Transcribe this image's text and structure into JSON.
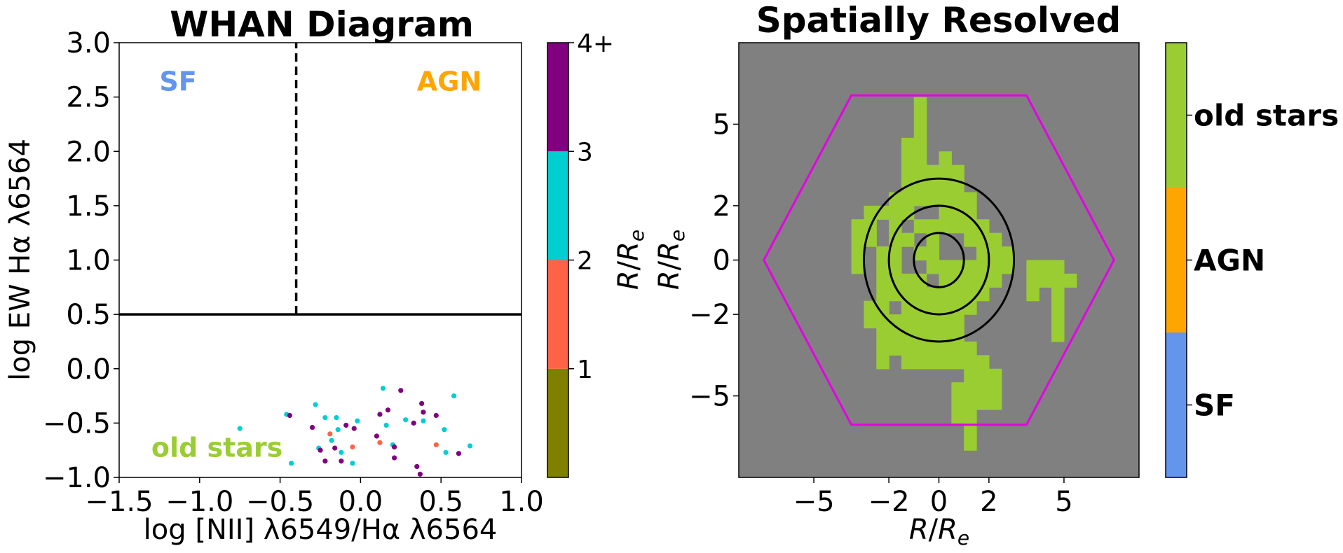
{
  "chart_data": [
    {
      "type": "scatter",
      "title": "WHAN Diagram",
      "xlabel": "log [NII] λ6549/Hα λ6564",
      "ylabel": "log EW Hα λ6564",
      "xlim": [
        -1.5,
        1.0
      ],
      "ylim": [
        -1.0,
        3.0
      ],
      "xticks": [
        "−1.5",
        "−1.0",
        "−0.5",
        "0.0",
        "0.5",
        "1.0"
      ],
      "yticks": [
        "−1.0",
        "−0.5",
        "0.0",
        "0.5",
        "1.0",
        "1.5",
        "2.0",
        "2.5",
        "3.0"
      ],
      "xtick_values": [
        -1.5,
        -1.0,
        -0.5,
        0.0,
        0.5,
        1.0
      ],
      "ytick_values": [
        -1.0,
        -0.5,
        0.0,
        0.5,
        1.0,
        1.5,
        2.0,
        2.5,
        3.0
      ],
      "regions": [
        {
          "label": "SF",
          "color": "#6495ED",
          "x": -1.25,
          "y": 2.65
        },
        {
          "label": "AGN",
          "color": "#FFA500",
          "x": 0.35,
          "y": 2.65
        },
        {
          "label": "old stars",
          "color": "#9ACD32",
          "x": -1.3,
          "y": -0.72
        }
      ],
      "lines": [
        {
          "kind": "vertical",
          "x": -0.4,
          "y_from": 0.5,
          "y_to": 3.0,
          "style": "dashed"
        },
        {
          "kind": "horizontal",
          "y": 0.5,
          "style": "solid"
        }
      ],
      "colorbar": {
        "label": "R/R_e",
        "tick_labels": [
          "1",
          "2",
          "3",
          "4+"
        ],
        "bins": [
          {
            "from": 0,
            "to": 1,
            "color": "#808000"
          },
          {
            "from": 1,
            "to": 2,
            "color": "#FF6347"
          },
          {
            "from": 2,
            "to": 3,
            "color": "#00CED1"
          },
          {
            "from": 3,
            "to": 4,
            "color": "#800080"
          }
        ],
        "range": [
          0,
          4
        ]
      },
      "points": [
        {
          "x": -0.75,
          "y": -0.55,
          "c": "#00CED1"
        },
        {
          "x": -0.46,
          "y": -0.42,
          "c": "#00CED1"
        },
        {
          "x": -0.44,
          "y": -0.43,
          "c": "#800080"
        },
        {
          "x": -0.43,
          "y": -0.87,
          "c": "#00CED1"
        },
        {
          "x": -0.28,
          "y": -0.33,
          "c": "#00CED1"
        },
        {
          "x": -0.3,
          "y": -0.54,
          "c": "#800080"
        },
        {
          "x": -0.26,
          "y": -0.73,
          "c": "#00CED1"
        },
        {
          "x": -0.25,
          "y": -0.75,
          "c": "#800080"
        },
        {
          "x": -0.22,
          "y": -0.45,
          "c": "#00CED1"
        },
        {
          "x": -0.22,
          "y": -0.85,
          "c": "#800080"
        },
        {
          "x": -0.19,
          "y": -0.6,
          "c": "#FF6347"
        },
        {
          "x": -0.18,
          "y": -0.66,
          "c": "#00CED1"
        },
        {
          "x": -0.16,
          "y": -0.73,
          "c": "#800080"
        },
        {
          "x": -0.15,
          "y": -0.45,
          "c": "#00CED1"
        },
        {
          "x": -0.14,
          "y": -0.56,
          "c": "#00CED1"
        },
        {
          "x": -0.12,
          "y": -0.85,
          "c": "#800080"
        },
        {
          "x": -0.12,
          "y": -0.77,
          "c": "#00CED1"
        },
        {
          "x": -0.09,
          "y": -0.52,
          "c": "#800080"
        },
        {
          "x": -0.05,
          "y": -0.72,
          "c": "#FF6347"
        },
        {
          "x": -0.05,
          "y": -0.87,
          "c": "#00CED1"
        },
        {
          "x": -0.02,
          "y": -0.48,
          "c": "#00CED1"
        },
        {
          "x": -0.04,
          "y": -0.55,
          "c": "#800080"
        },
        {
          "x": 0.1,
          "y": -0.62,
          "c": "#800080"
        },
        {
          "x": 0.12,
          "y": -0.68,
          "c": "#FF6347"
        },
        {
          "x": 0.12,
          "y": -0.42,
          "c": "#800080"
        },
        {
          "x": 0.14,
          "y": -0.18,
          "c": "#00CED1"
        },
        {
          "x": 0.17,
          "y": -0.38,
          "c": "#800080"
        },
        {
          "x": 0.16,
          "y": -0.52,
          "c": "#00CED1"
        },
        {
          "x": 0.2,
          "y": -0.7,
          "c": "#00CED1"
        },
        {
          "x": 0.21,
          "y": -0.72,
          "c": "#800080"
        },
        {
          "x": 0.21,
          "y": -0.82,
          "c": "#800080"
        },
        {
          "x": 0.25,
          "y": -0.2,
          "c": "#800080"
        },
        {
          "x": 0.28,
          "y": -0.47,
          "c": "#00CED1"
        },
        {
          "x": 0.33,
          "y": -0.5,
          "c": "#800080"
        },
        {
          "x": 0.35,
          "y": -0.9,
          "c": "#800080"
        },
        {
          "x": 0.37,
          "y": -0.97,
          "c": "#800080"
        },
        {
          "x": 0.38,
          "y": -0.32,
          "c": "#800080"
        },
        {
          "x": 0.39,
          "y": -0.4,
          "c": "#800080"
        },
        {
          "x": 0.39,
          "y": -0.48,
          "c": "#00CED1"
        },
        {
          "x": 0.47,
          "y": -0.43,
          "c": "#800080"
        },
        {
          "x": 0.47,
          "y": -0.7,
          "c": "#FF6347"
        },
        {
          "x": 0.52,
          "y": -0.56,
          "c": "#00CED1"
        },
        {
          "x": 0.53,
          "y": -0.77,
          "c": "#00CED1"
        },
        {
          "x": 0.58,
          "y": -0.25,
          "c": "#00CED1"
        },
        {
          "x": 0.61,
          "y": -0.78,
          "c": "#800080"
        },
        {
          "x": 0.68,
          "y": -0.71,
          "c": "#00CED1"
        }
      ]
    },
    {
      "type": "heatmap",
      "title": "Spatially Resolved",
      "xlabel": "R/R_e",
      "ylabel": "R/R_e",
      "xlim": [
        -8,
        8
      ],
      "ylim": [
        -8,
        8
      ],
      "xticks": [
        "−5",
        "−2",
        "0",
        "2",
        "5"
      ],
      "yticks": [
        "−5",
        "−2",
        "0",
        "2",
        "5"
      ],
      "xtick_values": [
        -5,
        -2,
        0,
        2,
        5
      ],
      "ytick_values": [
        -5,
        -2,
        0,
        2,
        5
      ],
      "background_color": "#808080",
      "pixel_color": "#9ACD32",
      "grid_origin": [
        -8,
        8
      ],
      "pixel_size": 0.5,
      "filled_cells": [
        [
          26,
          35
        ],
        [
          25,
          35
        ],
        [
          24,
          35
        ],
        [
          27,
          35
        ],
        [
          23,
          35
        ],
        [
          27,
          35
        ],
        [
          22,
          35
        ],
        [
          23,
          35
        ],
        [
          24,
          35
        ],
        [
          25,
          35
        ],
        [
          26,
          35
        ],
        [
          27,
          35
        ],
        [
          28,
          35
        ],
        [
          22,
          35
        ],
        [
          23,
          35
        ],
        [
          24,
          35
        ],
        [
          25,
          35
        ],
        [
          26,
          35
        ],
        [
          27,
          35
        ],
        [
          28,
          35
        ],
        [
          24,
          35
        ],
        [
          25,
          35
        ],
        [
          26,
          35
        ],
        [
          27,
          35
        ],
        [
          24,
          35
        ],
        [
          25,
          35
        ],
        [
          26,
          35
        ],
        [
          27,
          35
        ],
        [
          23,
          35
        ],
        [
          24,
          35
        ],
        [
          25,
          35
        ],
        [
          26,
          35
        ],
        [
          27,
          35
        ],
        [
          28,
          35
        ],
        [
          22,
          35
        ],
        [
          23,
          35
        ],
        [
          24,
          35
        ],
        [
          25,
          35
        ],
        [
          26,
          35
        ],
        [
          27,
          35
        ],
        [
          28,
          35
        ],
        [
          21,
          35
        ],
        [
          22,
          35
        ],
        [
          23,
          35
        ],
        [
          26,
          35
        ],
        [
          27,
          35
        ],
        [
          28,
          35
        ],
        [
          29,
          35
        ],
        [
          21,
          35
        ],
        [
          22,
          35
        ],
        [
          27,
          35
        ],
        [
          28,
          35
        ],
        [
          29,
          35
        ],
        [
          30,
          35
        ],
        [
          21,
          35
        ],
        [
          22,
          35
        ],
        [
          28,
          35
        ],
        [
          29,
          35
        ],
        [
          30,
          35
        ],
        [
          31,
          35
        ],
        [
          32,
          35
        ],
        [
          33,
          35
        ],
        [
          34,
          35
        ],
        [
          20,
          35
        ],
        [
          21,
          35
        ],
        [
          22,
          35
        ],
        [
          25,
          35
        ],
        [
          26,
          35
        ],
        [
          27,
          35
        ],
        [
          28,
          35
        ],
        [
          29,
          35
        ],
        [
          30,
          35
        ],
        [
          31,
          35
        ],
        [
          32,
          35
        ],
        [
          33,
          35
        ],
        [
          34,
          35
        ],
        [
          35,
          35
        ],
        [
          36,
          35
        ],
        [
          20,
          35
        ],
        [
          21,
          35
        ],
        [
          22,
          35
        ],
        [
          25,
          35
        ],
        [
          26,
          35
        ],
        [
          27,
          35
        ],
        [
          28,
          35
        ],
        [
          29,
          35
        ],
        [
          30,
          35
        ],
        [
          31,
          35
        ],
        [
          32,
          35
        ],
        [
          34,
          35
        ],
        [
          35,
          35
        ],
        [
          36,
          35
        ]
      ],
      "rows": [
        {
          "y": 5.5,
          "x": [
            -1.0
          ]
        },
        {
          "y": 5.0,
          "x": [
            -1.0
          ]
        },
        {
          "y": 4.5,
          "x": [
            -1.0
          ]
        },
        {
          "y": 4.0,
          "x": [
            -1.5,
            -1.0
          ]
        },
        {
          "y": 3.5,
          "x": [
            -1.5,
            -1.0,
            0.0
          ]
        },
        {
          "y": 3.0,
          "x": [
            -1.5,
            -1.0,
            -0.5,
            0.0,
            0.5
          ]
        },
        {
          "y": 2.5,
          "x": [
            -1.5,
            -1.0,
            -0.5,
            0.0,
            0.5
          ]
        },
        {
          "y": 2.0,
          "x": [
            -2.0,
            -1.5,
            -1.0,
            -0.5,
            0.0,
            0.5,
            1.0
          ]
        },
        {
          "y": 1.5,
          "x": [
            -3.0,
            -2.5,
            -2.0,
            -1.5,
            0.0,
            0.5,
            1.0
          ]
        },
        {
          "y": 1.0,
          "x": [
            -3.5,
            -3.0,
            -2.0,
            -1.0,
            -0.5,
            0.0,
            0.5,
            1.0,
            1.5
          ]
        },
        {
          "y": 0.5,
          "x": [
            -3.5,
            -3.0,
            -2.0,
            -1.5,
            -0.5,
            1.0,
            1.5,
            2.0
          ]
        },
        {
          "y": 0.0,
          "x": [
            -3.5,
            -2.5,
            -2.0,
            -1.0,
            -0.5,
            1.5,
            2.0,
            2.5
          ]
        },
        {
          "y": -0.5,
          "x": [
            -3.5,
            -2.5,
            -2.0,
            -0.5,
            0.0,
            0.5,
            1.0,
            1.5,
            2.0,
            2.5,
            3.5,
            4.0,
            4.5
          ]
        },
        {
          "y": -1.0,
          "x": [
            -2.5,
            -2.0,
            -1.5,
            -1.0,
            0.0,
            0.5,
            1.0,
            1.5,
            2.0,
            3.5,
            4.0,
            4.5,
            5.0
          ]
        },
        {
          "y": -1.5,
          "x": [
            -2.5,
            -2.0,
            -1.5,
            -1.0,
            -0.5,
            0.0,
            0.5,
            1.0,
            1.5,
            3.5,
            4.5
          ]
        },
        {
          "y": -2.0,
          "x": [
            -3.0,
            -2.5,
            -1.5,
            -1.0,
            -0.5,
            0.0,
            0.5,
            1.0,
            4.5
          ]
        },
        {
          "y": -2.5,
          "x": [
            -3.0,
            -2.5,
            -2.0,
            -1.5,
            -1.0,
            -0.5,
            0.0,
            0.5,
            4.5
          ]
        },
        {
          "y": -3.0,
          "x": [
            -2.5,
            -2.0,
            -1.5,
            -1.0,
            -0.5,
            0.0,
            0.5,
            4.5
          ]
        },
        {
          "y": -3.5,
          "x": [
            -2.5,
            -2.0,
            -1.5,
            -1.0,
            -0.5,
            0.0,
            0.5,
            1.0
          ]
        },
        {
          "y": -4.0,
          "x": [
            -2.5,
            -1.5,
            -1.0,
            -0.5,
            0.0,
            0.5,
            1.0,
            1.5
          ]
        },
        {
          "y": -4.5,
          "x": [
            1.0,
            1.5,
            2.0
          ]
        },
        {
          "y": -5.0,
          "x": [
            0.5,
            1.0,
            1.5,
            2.0
          ]
        },
        {
          "y": -5.5,
          "x": [
            0.5,
            1.0,
            1.5,
            2.0
          ]
        },
        {
          "y": -6.0,
          "x": [
            0.5,
            1.0
          ]
        },
        {
          "y": -6.5,
          "x": [
            1.0
          ]
        },
        {
          "y": -7.0,
          "x": [
            1.0
          ]
        }
      ],
      "hexagon": {
        "color": "#E600E6",
        "vertices": [
          [
            -7,
            0
          ],
          [
            -3.5,
            6.06
          ],
          [
            3.5,
            6.06
          ],
          [
            7,
            0
          ],
          [
            3.5,
            -6.06
          ],
          [
            -3.5,
            -6.06
          ]
        ]
      },
      "ellipses": [
        {
          "cx": 0,
          "cy": 0,
          "rx": 1.0,
          "ry": 1.0
        },
        {
          "cx": 0,
          "cy": 0,
          "rx": 2.0,
          "ry": 2.0
        },
        {
          "cx": 0,
          "cy": 0,
          "rx": 3.0,
          "ry": 3.0
        }
      ],
      "colorbar": {
        "categories": [
          {
            "label": "SF",
            "color": "#6495ED"
          },
          {
            "label": "AGN",
            "color": "#FFA500"
          },
          {
            "label": "old stars",
            "color": "#9ACD32"
          }
        ]
      }
    }
  ]
}
